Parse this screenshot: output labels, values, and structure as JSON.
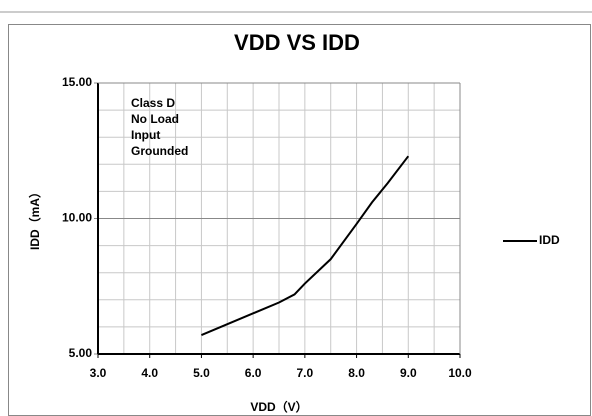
{
  "chart_data": {
    "type": "line",
    "title": "VDD VS IDD",
    "x_label": "VDD（V）",
    "y_label": "IDD（mA）",
    "annotation": [
      "Class D",
      "No Load",
      "Input",
      "Grounded"
    ],
    "xlim": [
      3,
      10
    ],
    "ylim": [
      5,
      15
    ],
    "xticks": [
      {
        "value": 3,
        "label": "3.0"
      },
      {
        "value": 4,
        "label": "4.0"
      },
      {
        "value": 5,
        "label": "5.0"
      },
      {
        "value": 6,
        "label": "6.0"
      },
      {
        "value": 7,
        "label": "7.0"
      },
      {
        "value": 8,
        "label": "8.0"
      },
      {
        "value": 9,
        "label": "9.0"
      },
      {
        "value": 10,
        "label": "10.0"
      }
    ],
    "yticks": [
      {
        "value": 5,
        "label": "5.00"
      },
      {
        "value": 10,
        "label": "10.00"
      },
      {
        "value": 15,
        "label": "15.00"
      }
    ],
    "minor_xticks": [
      3.5,
      4,
      4.5,
      5,
      5.5,
      6,
      6.5,
      7,
      7.5,
      8,
      8.5,
      9,
      9.5
    ],
    "minor_yticks": [
      6,
      7,
      8,
      9,
      11,
      12,
      13,
      14
    ],
    "grid": true,
    "legend": "right",
    "x": [
      5.0,
      5.5,
      6.0,
      6.5,
      6.8,
      7.0,
      7.5,
      8.0,
      8.3,
      8.6,
      9.0
    ],
    "series": [
      {
        "name": "IDD",
        "color": "#000000",
        "values": [
          5.7,
          6.1,
          6.5,
          6.9,
          7.2,
          7.6,
          8.5,
          9.8,
          10.6,
          11.3,
          12.3
        ]
      }
    ]
  }
}
